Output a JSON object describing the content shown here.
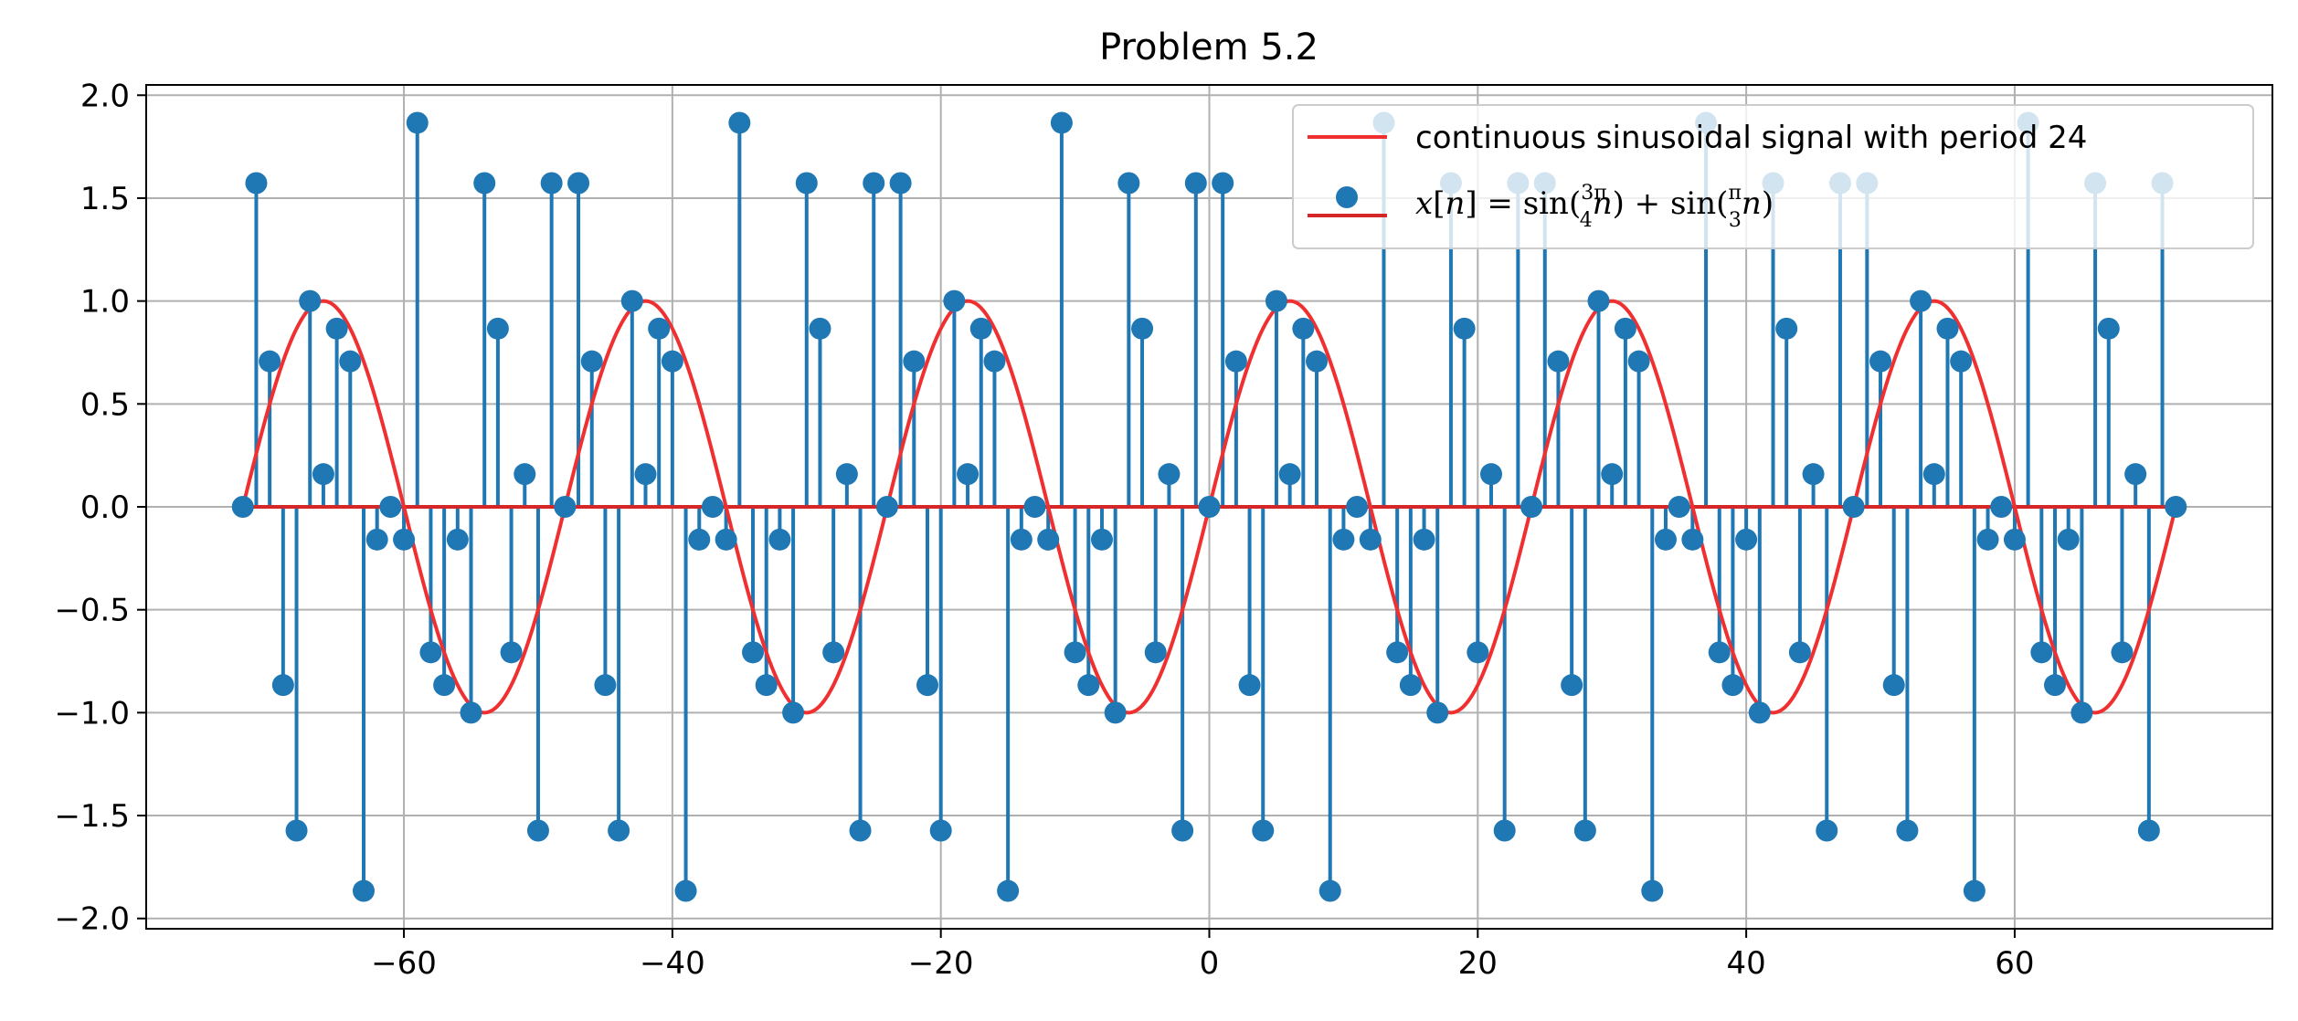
{
  "chart_data": {
    "type": "stem",
    "title": "Problem 5.2",
    "xlabel": "",
    "ylabel": "",
    "xlim": [
      -79.2,
      79.2
    ],
    "ylim": [
      -2.05,
      2.05
    ],
    "xticks": [
      -60,
      -40,
      -20,
      0,
      20,
      40,
      60
    ],
    "xtick_labels": [
      "−60",
      "−40",
      "−20",
      "0",
      "20",
      "40",
      "60"
    ],
    "yticks": [
      2.0,
      1.5,
      1.0,
      0.5,
      0.0,
      -0.5,
      -1.0,
      -1.5,
      -2.0
    ],
    "ytick_labels": [
      "2.0",
      "1.5",
      "1.0",
      "0.5",
      "0.0",
      "−0.5",
      "−1.0",
      "−1.5",
      "−2.0"
    ],
    "grid": true,
    "legend_position": "top-right",
    "series": [
      {
        "name": "continuous sinusoidal signal with period 24",
        "kind": "line",
        "color": "#f03030",
        "n_start": -72,
        "n_end": 72,
        "amplitude": 1,
        "period": 24
      },
      {
        "name": "x[n] = sin(3π/4 n) + sin(π/3 n)",
        "kind": "stem",
        "color": "#1f77b4",
        "baseline_color": "#d62728",
        "n_start": -72,
        "n_end": 72,
        "values": [
          0,
          1.573,
          0.707,
          -0.866,
          -1.573,
          1,
          0.159,
          0.866,
          0.707,
          -1.866,
          -0.159,
          0,
          -0.159,
          1.866,
          -0.707,
          -0.866,
          -0.159,
          -1,
          1.573,
          0.866,
          -0.707,
          0.159,
          -1.573,
          1.573,
          0,
          1.573,
          0.707,
          -0.866,
          -1.573,
          1,
          0.159,
          0.866,
          0.707,
          -1.866,
          -0.159,
          0,
          -0.159,
          1.866,
          -0.707,
          -0.866,
          -0.159,
          -1,
          1.573,
          0.866,
          -0.707,
          0.159,
          -1.573,
          1.573,
          0,
          1.573,
          0.707,
          -0.866,
          -1.573,
          1,
          0.159,
          0.866,
          0.707,
          -1.866,
          -0.159,
          0,
          -0.159,
          1.866,
          -0.707,
          -0.866,
          -0.159,
          -1,
          1.573,
          0.866,
          -0.707,
          0.159,
          -1.573,
          1.573,
          0,
          1.573,
          0.707,
          -0.866,
          -1.573,
          1,
          0.159,
          0.866,
          0.707,
          -1.866,
          -0.159,
          0,
          -0.159,
          1.866,
          -0.707,
          -0.866,
          -0.159,
          -1,
          1.573,
          0.866,
          -0.707,
          0.159,
          -1.573,
          1.573,
          0,
          1.573,
          0.707,
          -0.866,
          -1.573,
          1,
          0.159,
          0.866,
          0.707,
          -1.866,
          -0.159,
          0,
          -0.159,
          1.866,
          -0.707,
          -0.866,
          -0.159,
          -1,
          1.573,
          0.866,
          -0.707,
          0.159,
          -1.573,
          1.573,
          0,
          1.573,
          0.707,
          -0.866,
          -1.573,
          1,
          0.159,
          0.866,
          0.707,
          -1.866,
          -0.159,
          0,
          -0.159,
          1.866,
          -0.707,
          -0.866,
          -0.159,
          -1,
          1.573,
          0.866,
          -0.707,
          0.159,
          -1.573,
          1.573,
          0
        ]
      }
    ],
    "legend": {
      "line_label": "continuous sinusoidal signal with period 24",
      "stem_label": {
        "x": "x",
        "lb": "[",
        "n": "n",
        "rb_eq": "] = sin(",
        "frac1_num": "3π",
        "frac1_den": "4",
        "mid": ") + sin(",
        "frac2_num": "π",
        "frac2_den": "3",
        "end": ")"
      }
    }
  }
}
